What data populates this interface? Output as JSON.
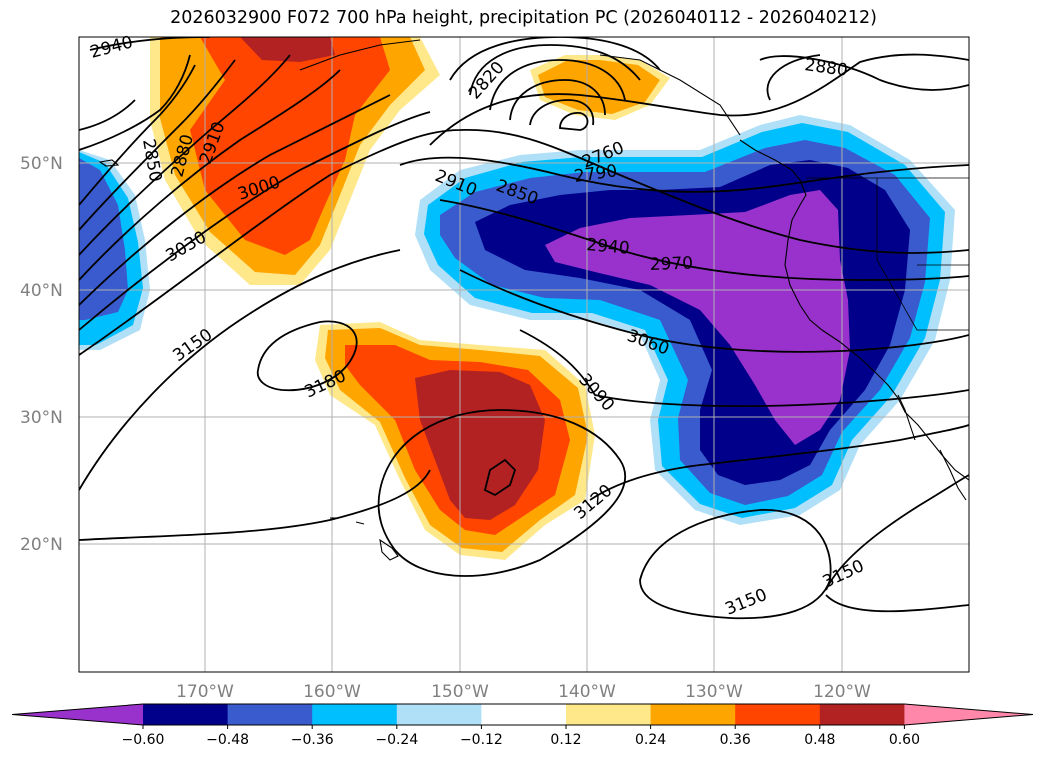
{
  "title": "2026032900 F072 700 hPa height, precipitation PC (2026040112 - 2026040212)",
  "map": {
    "lat_labels": [
      "50°N",
      "40°N",
      "30°N",
      "20°N"
    ],
    "lon_labels": [
      "170°W",
      "160°W",
      "150°W",
      "140°W",
      "130°W",
      "120°W"
    ]
  },
  "contour_labels": [
    "2940",
    "2820",
    "2880",
    "2850",
    "2880",
    "2910",
    "3000",
    "3030",
    "3150",
    "3180",
    "2910",
    "2850",
    "2760",
    "2790",
    "2940",
    "2970",
    "3060",
    "3090",
    "3120",
    "3150",
    "3150"
  ],
  "colorbar": {
    "ticks": [
      "−0.60",
      "−0.48",
      "−0.36",
      "−0.24",
      "−0.12",
      "0.12",
      "0.24",
      "0.36",
      "0.48",
      "0.60"
    ],
    "colors": [
      "#9932cc",
      "#00008b",
      "#3a5bcd",
      "#00bfff",
      "#b0e0f8",
      "#ffffff",
      "#ffe88a",
      "#ffa500",
      "#ff4500",
      "#b22222",
      "#ff88aa"
    ]
  }
}
